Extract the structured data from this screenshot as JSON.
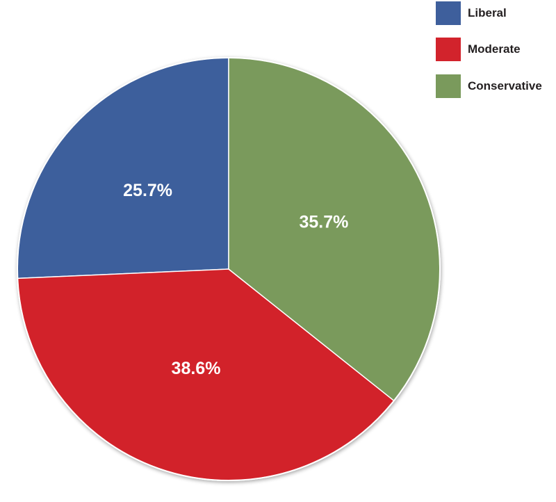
{
  "chart_data": {
    "type": "pie",
    "categories": [
      "Liberal",
      "Moderate",
      "Conservative"
    ],
    "values": [
      25.7,
      38.6,
      35.7
    ],
    "value_labels": [
      "25.7%",
      "38.6%",
      "35.7%"
    ],
    "colors": [
      "#3e5f9c",
      "#d2232c",
      "#7a9a5c"
    ],
    "start_angle_deg": 0,
    "direction": "counterclockwise",
    "legend": {
      "placement": "top-right",
      "entries": [
        "Liberal",
        "Moderate",
        "Conservative"
      ]
    }
  }
}
